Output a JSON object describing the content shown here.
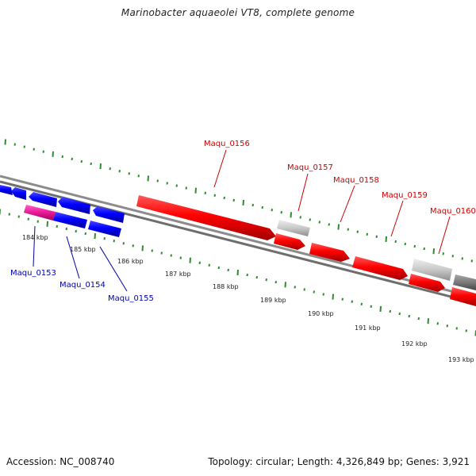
{
  "title": "Marinobacter aquaeolei VT8, complete genome",
  "footer": {
    "accession": "Accession: NC_008740",
    "summary": "Topology: circular; Length: 4,326,849 bp; Genes: 3,921"
  },
  "colors": {
    "forward_gene": "#ff0000",
    "reverse_gene": "#0000ff",
    "pseudo_gene": "#ee1c9c",
    "light_grey_gene": "#c8c8c8",
    "dark_grey_gene": "#7a7a7a",
    "tick_mark": "#2e8b2e",
    "top_label": "#cc0000",
    "bottom_label": "#0000aa",
    "backbone": "#8c8c8c"
  },
  "ticks": {
    "labels": [
      "184 kbp",
      "185 kbp",
      "186 kbp",
      "187 kbp",
      "188 kbp",
      "189 kbp",
      "190 kbp",
      "191 kbp",
      "192 kbp",
      "193 kbp"
    ]
  },
  "genes_top": [
    "Maqu_0156",
    "Maqu_0157",
    "Maqu_0158",
    "Maqu_0159",
    "Maqu_0160"
  ],
  "genes_bottom": [
    "Maqu_0153",
    "Maqu_0154",
    "Maqu_0155"
  ]
}
